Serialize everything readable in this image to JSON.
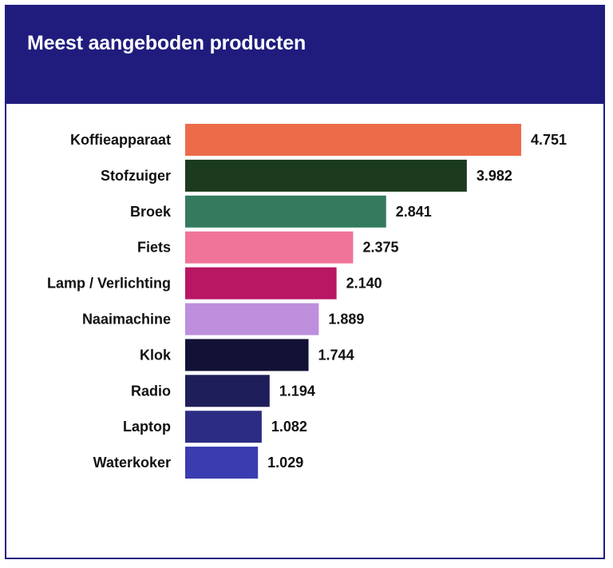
{
  "chart_data": {
    "type": "bar",
    "orientation": "horizontal",
    "title": "Meest aangeboden producten",
    "xlabel": "",
    "ylabel": "",
    "xlim": [
      0,
      4751
    ],
    "grid": false,
    "categories": [
      "Koffieapparaat",
      "Stofzuiger",
      "Broek",
      "Fiets",
      "Lamp / Verlichting",
      "Naaimachine",
      "Klok",
      "Radio",
      "Laptop",
      "Waterkoker"
    ],
    "values": [
      4751,
      3982,
      2841,
      2375,
      2140,
      1889,
      1744,
      1194,
      1082,
      1029
    ],
    "value_labels": [
      "4.751",
      "3.982",
      "2.841",
      "2.375",
      "2.140",
      "1.889",
      "1.744",
      "1.194",
      "1.082",
      "1.029"
    ],
    "colors": [
      "#ec6c4a",
      "#1c3a1e",
      "#337a5e",
      "#f07499",
      "#b91664",
      "#bd8fdd",
      "#121236",
      "#1e1e5a",
      "#2c2c84",
      "#3a3cb0"
    ]
  },
  "theme": {
    "header_color": "#1f1c7d",
    "title_color": "#ffffff",
    "text_color": "#111111"
  }
}
